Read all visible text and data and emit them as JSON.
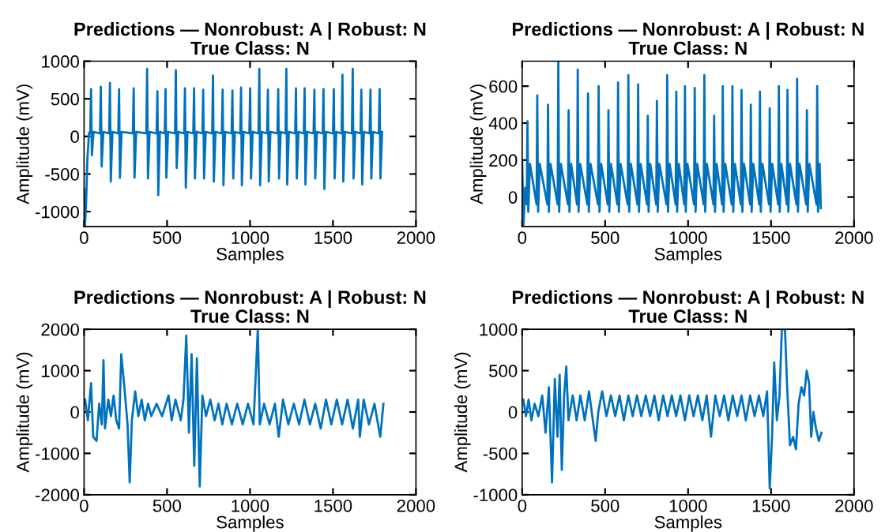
{
  "chart_data": [
    {
      "type": "line",
      "title": "Predictions — Nonrobust: A | Robust: N\nTrue Class: N",
      "xlabel": "Samples",
      "ylabel": "Amplitude (mV)",
      "xlim": [
        0,
        2000
      ],
      "xticks": [
        0,
        500,
        1000,
        1500,
        2000
      ],
      "ylim": [
        -1200,
        1000
      ],
      "yticks": [
        -1000,
        -500,
        0,
        500,
        1000
      ],
      "grid": false,
      "legend": false,
      "series": [
        {
          "color": "#0072bd",
          "x": [
            0,
            5,
            12,
            20,
            30,
            37,
            42,
            47,
            57,
            96,
            101,
            106,
            116,
            151,
            156,
            161,
            171,
            206,
            211,
            216,
            226,
            294,
            299,
            304,
            314,
            375,
            380,
            385,
            395,
            437,
            442,
            447,
            457,
            486,
            491,
            496,
            506,
            548,
            553,
            558,
            568,
            603,
            608,
            613,
            623,
            658,
            663,
            668,
            678,
            713,
            718,
            723,
            733,
            772,
            777,
            782,
            792,
            830,
            835,
            840,
            850,
            889,
            894,
            899,
            909,
            941,
            946,
            951,
            961,
            996,
            1001,
            1006,
            1016,
            1051,
            1056,
            1061,
            1071,
            1103,
            1108,
            1113,
            1123,
            1165,
            1170,
            1175,
            1185,
            1214,
            1219,
            1224,
            1234,
            1272,
            1277,
            1282,
            1292,
            1324,
            1329,
            1334,
            1344,
            1383,
            1388,
            1393,
            1403,
            1438,
            1443,
            1448,
            1458,
            1500,
            1505,
            1510,
            1520,
            1552,
            1557,
            1562,
            1572,
            1614,
            1619,
            1624,
            1634,
            1666,
            1671,
            1676,
            1686,
            1721,
            1726,
            1731,
            1741,
            1776,
            1781,
            1786,
            1796
          ],
          "values": [
            -700,
            -1200,
            -900,
            -300,
            50,
            40,
            630,
            -250,
            60,
            40,
            660,
            -400,
            60,
            40,
            710,
            -600,
            60,
            40,
            630,
            -550,
            60,
            40,
            640,
            -550,
            60,
            40,
            900,
            -560,
            60,
            40,
            600,
            -780,
            60,
            40,
            630,
            -550,
            60,
            40,
            880,
            -420,
            60,
            40,
            640,
            -680,
            60,
            40,
            640,
            -560,
            60,
            40,
            620,
            -560,
            60,
            40,
            810,
            -600,
            60,
            40,
            620,
            -650,
            60,
            40,
            610,
            -560,
            60,
            40,
            650,
            -650,
            60,
            40,
            640,
            -560,
            60,
            40,
            900,
            -650,
            60,
            40,
            620,
            -600,
            60,
            40,
            630,
            -560,
            60,
            40,
            900,
            -640,
            60,
            40,
            640,
            -560,
            60,
            40,
            640,
            -640,
            60,
            40,
            620,
            -560,
            60,
            40,
            630,
            -700,
            60,
            40,
            630,
            -560,
            60,
            40,
            820,
            -600,
            60,
            40,
            900,
            -560,
            60,
            40,
            620,
            -640,
            60,
            40,
            620,
            -560,
            60,
            40,
            630,
            -560,
            60
          ]
        }
      ]
    },
    {
      "type": "line",
      "title": "Predictions — Nonrobust: A | Robust: N\nTrue Class: N",
      "xlabel": "Samples",
      "ylabel": "Amplitude (mV)",
      "xlim": [
        0,
        2000
      ],
      "xticks": [
        0,
        500,
        1000,
        1500,
        2000
      ],
      "ylim": [
        -160,
        735
      ],
      "yticks": [
        0,
        200,
        400,
        600
      ],
      "grid": false,
      "legend": false,
      "series": [
        {
          "color": "#0072bd",
          "x": [
            0,
            8,
            18,
            28,
            32,
            37,
            47,
            87,
            91,
            96,
            106,
            152,
            156,
            161,
            171,
            214,
            218,
            223,
            233,
            276,
            280,
            285,
            295,
            331,
            335,
            340,
            350,
            393,
            397,
            402,
            412,
            457,
            461,
            466,
            476,
            516,
            520,
            525,
            535,
            574,
            578,
            583,
            593,
            636,
            640,
            645,
            655,
            695,
            699,
            704,
            714,
            753,
            757,
            762,
            772,
            808,
            812,
            817,
            827,
            870,
            874,
            879,
            889,
            925,
            929,
            934,
            944,
            977,
            981,
            986,
            996,
            1036,
            1040,
            1045,
            1055,
            1094,
            1098,
            1103,
            1113,
            1153,
            1157,
            1162,
            1172,
            1205,
            1209,
            1214,
            1224,
            1263,
            1267,
            1272,
            1282,
            1318,
            1322,
            1327,
            1337,
            1374,
            1378,
            1383,
            1393,
            1429,
            1433,
            1438,
            1448,
            1488,
            1492,
            1497,
            1507,
            1543,
            1547,
            1552,
            1562,
            1595,
            1599,
            1604,
            1614,
            1653,
            1657,
            1662,
            1672,
            1712,
            1716,
            1721,
            1731,
            1774,
            1778,
            1783,
            1793,
            1800
          ],
          "values": [
            200,
            -150,
            50,
            -40,
            410,
            -80,
            180,
            -40,
            550,
            -80,
            180,
            -40,
            500,
            -80,
            180,
            -40,
            735,
            -80,
            180,
            -40,
            470,
            -80,
            180,
            -40,
            690,
            -80,
            180,
            -40,
            560,
            -80,
            180,
            -40,
            600,
            -80,
            180,
            -40,
            470,
            -80,
            180,
            -40,
            620,
            -80,
            180,
            -40,
            660,
            -80,
            180,
            -40,
            610,
            -80,
            180,
            -40,
            440,
            -80,
            180,
            -40,
            520,
            -80,
            180,
            -40,
            660,
            -80,
            180,
            -40,
            570,
            -80,
            180,
            -40,
            600,
            -80,
            180,
            -40,
            590,
            -80,
            180,
            -40,
            660,
            -80,
            180,
            -40,
            440,
            -80,
            180,
            -40,
            600,
            -80,
            180,
            -40,
            600,
            -80,
            180,
            -40,
            580,
            -80,
            180,
            -40,
            500,
            -80,
            180,
            -40,
            570,
            -80,
            180,
            -40,
            480,
            -80,
            180,
            -40,
            600,
            -80,
            180,
            -40,
            580,
            -80,
            180,
            -40,
            640,
            -80,
            180,
            -40,
            470,
            -80,
            180,
            -40,
            600,
            -80,
            180,
            -60
          ]
        }
      ]
    },
    {
      "type": "line",
      "title": "Predictions — Nonrobust: A | Robust: N\nTrue Class: N",
      "xlabel": "Samples",
      "ylabel": "Amplitude (mV)",
      "xlim": [
        0,
        2000
      ],
      "xticks": [
        0,
        500,
        1000,
        1500,
        2000
      ],
      "ylim": [
        -2000,
        2000
      ],
      "yticks": [
        -2000,
        -1000,
        0,
        1000,
        2000
      ],
      "grid": false,
      "legend": false,
      "series": [
        {
          "color": "#0072bd",
          "x": [
            6,
            23,
            42,
            55,
            75,
            91,
            107,
            117,
            126,
            146,
            162,
            178,
            194,
            211,
            224,
            243,
            262,
            275,
            288,
            308,
            327,
            347,
            366,
            386,
            405,
            437,
            470,
            509,
            528,
            551,
            583,
            599,
            616,
            632,
            648,
            664,
            680,
            697,
            713,
            735,
            761,
            787,
            810,
            833,
            859,
            891,
            923,
            956,
            988,
            1021,
            1047,
            1059,
            1085,
            1118,
            1150,
            1173,
            1199,
            1231,
            1264,
            1296,
            1328,
            1361,
            1393,
            1426,
            1458,
            1490,
            1523,
            1555,
            1588,
            1620,
            1652,
            1662,
            1685,
            1717,
            1750,
            1776,
            1785,
            1804
          ],
          "values": [
            300,
            -200,
            700,
            -600,
            -700,
            200,
            -300,
            1250,
            -400,
            300,
            -100,
            400,
            -200,
            -400,
            1400,
            600,
            -300,
            -1700,
            -200,
            500,
            -100,
            300,
            -200,
            200,
            -100,
            200,
            -100,
            400,
            -200,
            300,
            -200,
            300,
            1850,
            -500,
            1400,
            -1300,
            1300,
            -1800,
            400,
            -100,
            300,
            -200,
            200,
            -300,
            200,
            -300,
            200,
            -300,
            200,
            -300,
            2000,
            -300,
            200,
            -300,
            200,
            -600,
            300,
            -300,
            200,
            -300,
            300,
            -300,
            200,
            -400,
            300,
            -300,
            300,
            -300,
            300,
            -400,
            300,
            -600,
            300,
            -300,
            200,
            -400,
            -600,
            200
          ]
        }
      ]
    },
    {
      "type": "line",
      "title": "Predictions — Nonrobust: A | Robust: N\nTrue Class: N",
      "xlabel": "Samples",
      "ylabel": "Amplitude (mV)",
      "xlim": [
        0,
        2000
      ],
      "xticks": [
        0,
        500,
        1000,
        1500,
        2000
      ],
      "ylim": [
        -1000,
        1000
      ],
      "yticks": [
        -1000,
        -500,
        0,
        500,
        1000
      ],
      "grid": false,
      "legend": false,
      "series": [
        {
          "color": "#0072bd",
          "x": [
            7,
            23,
            39,
            56,
            75,
            98,
            121,
            141,
            161,
            180,
            197,
            213,
            226,
            239,
            253,
            266,
            279,
            305,
            328,
            351,
            377,
            403,
            426,
            443,
            459,
            482,
            508,
            535,
            561,
            587,
            613,
            640,
            666,
            692,
            718,
            745,
            771,
            797,
            823,
            850,
            876,
            902,
            928,
            954,
            981,
            1007,
            1033,
            1059,
            1086,
            1112,
            1138,
            1164,
            1191,
            1217,
            1243,
            1269,
            1296,
            1322,
            1348,
            1374,
            1401,
            1427,
            1453,
            1476,
            1492,
            1506,
            1519,
            1535,
            1551,
            1565,
            1584,
            1597,
            1614,
            1633,
            1650,
            1666,
            1683,
            1699,
            1715,
            1729,
            1742,
            1755,
            1771,
            1788,
            1804
          ],
          "values": [
            150,
            -50,
            150,
            -100,
            100,
            -50,
            200,
            -250,
            300,
            -850,
            400,
            -300,
            450,
            -700,
            200,
            550,
            -100,
            200,
            -100,
            200,
            -100,
            250,
            -100,
            -350,
            0,
            250,
            -50,
            200,
            -50,
            200,
            -100,
            200,
            -50,
            200,
            -50,
            200,
            -50,
            200,
            -100,
            200,
            -50,
            200,
            -50,
            200,
            -100,
            200,
            -50,
            200,
            -100,
            200,
            -300,
            200,
            -50,
            200,
            -100,
            200,
            -50,
            200,
            -100,
            200,
            -50,
            200,
            -50,
            250,
            -920,
            -300,
            600,
            -100,
            200,
            1000,
            1000,
            300,
            -400,
            -300,
            -450,
            100,
            300,
            200,
            500,
            350,
            -300,
            0,
            -200,
            -350,
            -250
          ]
        }
      ]
    }
  ]
}
